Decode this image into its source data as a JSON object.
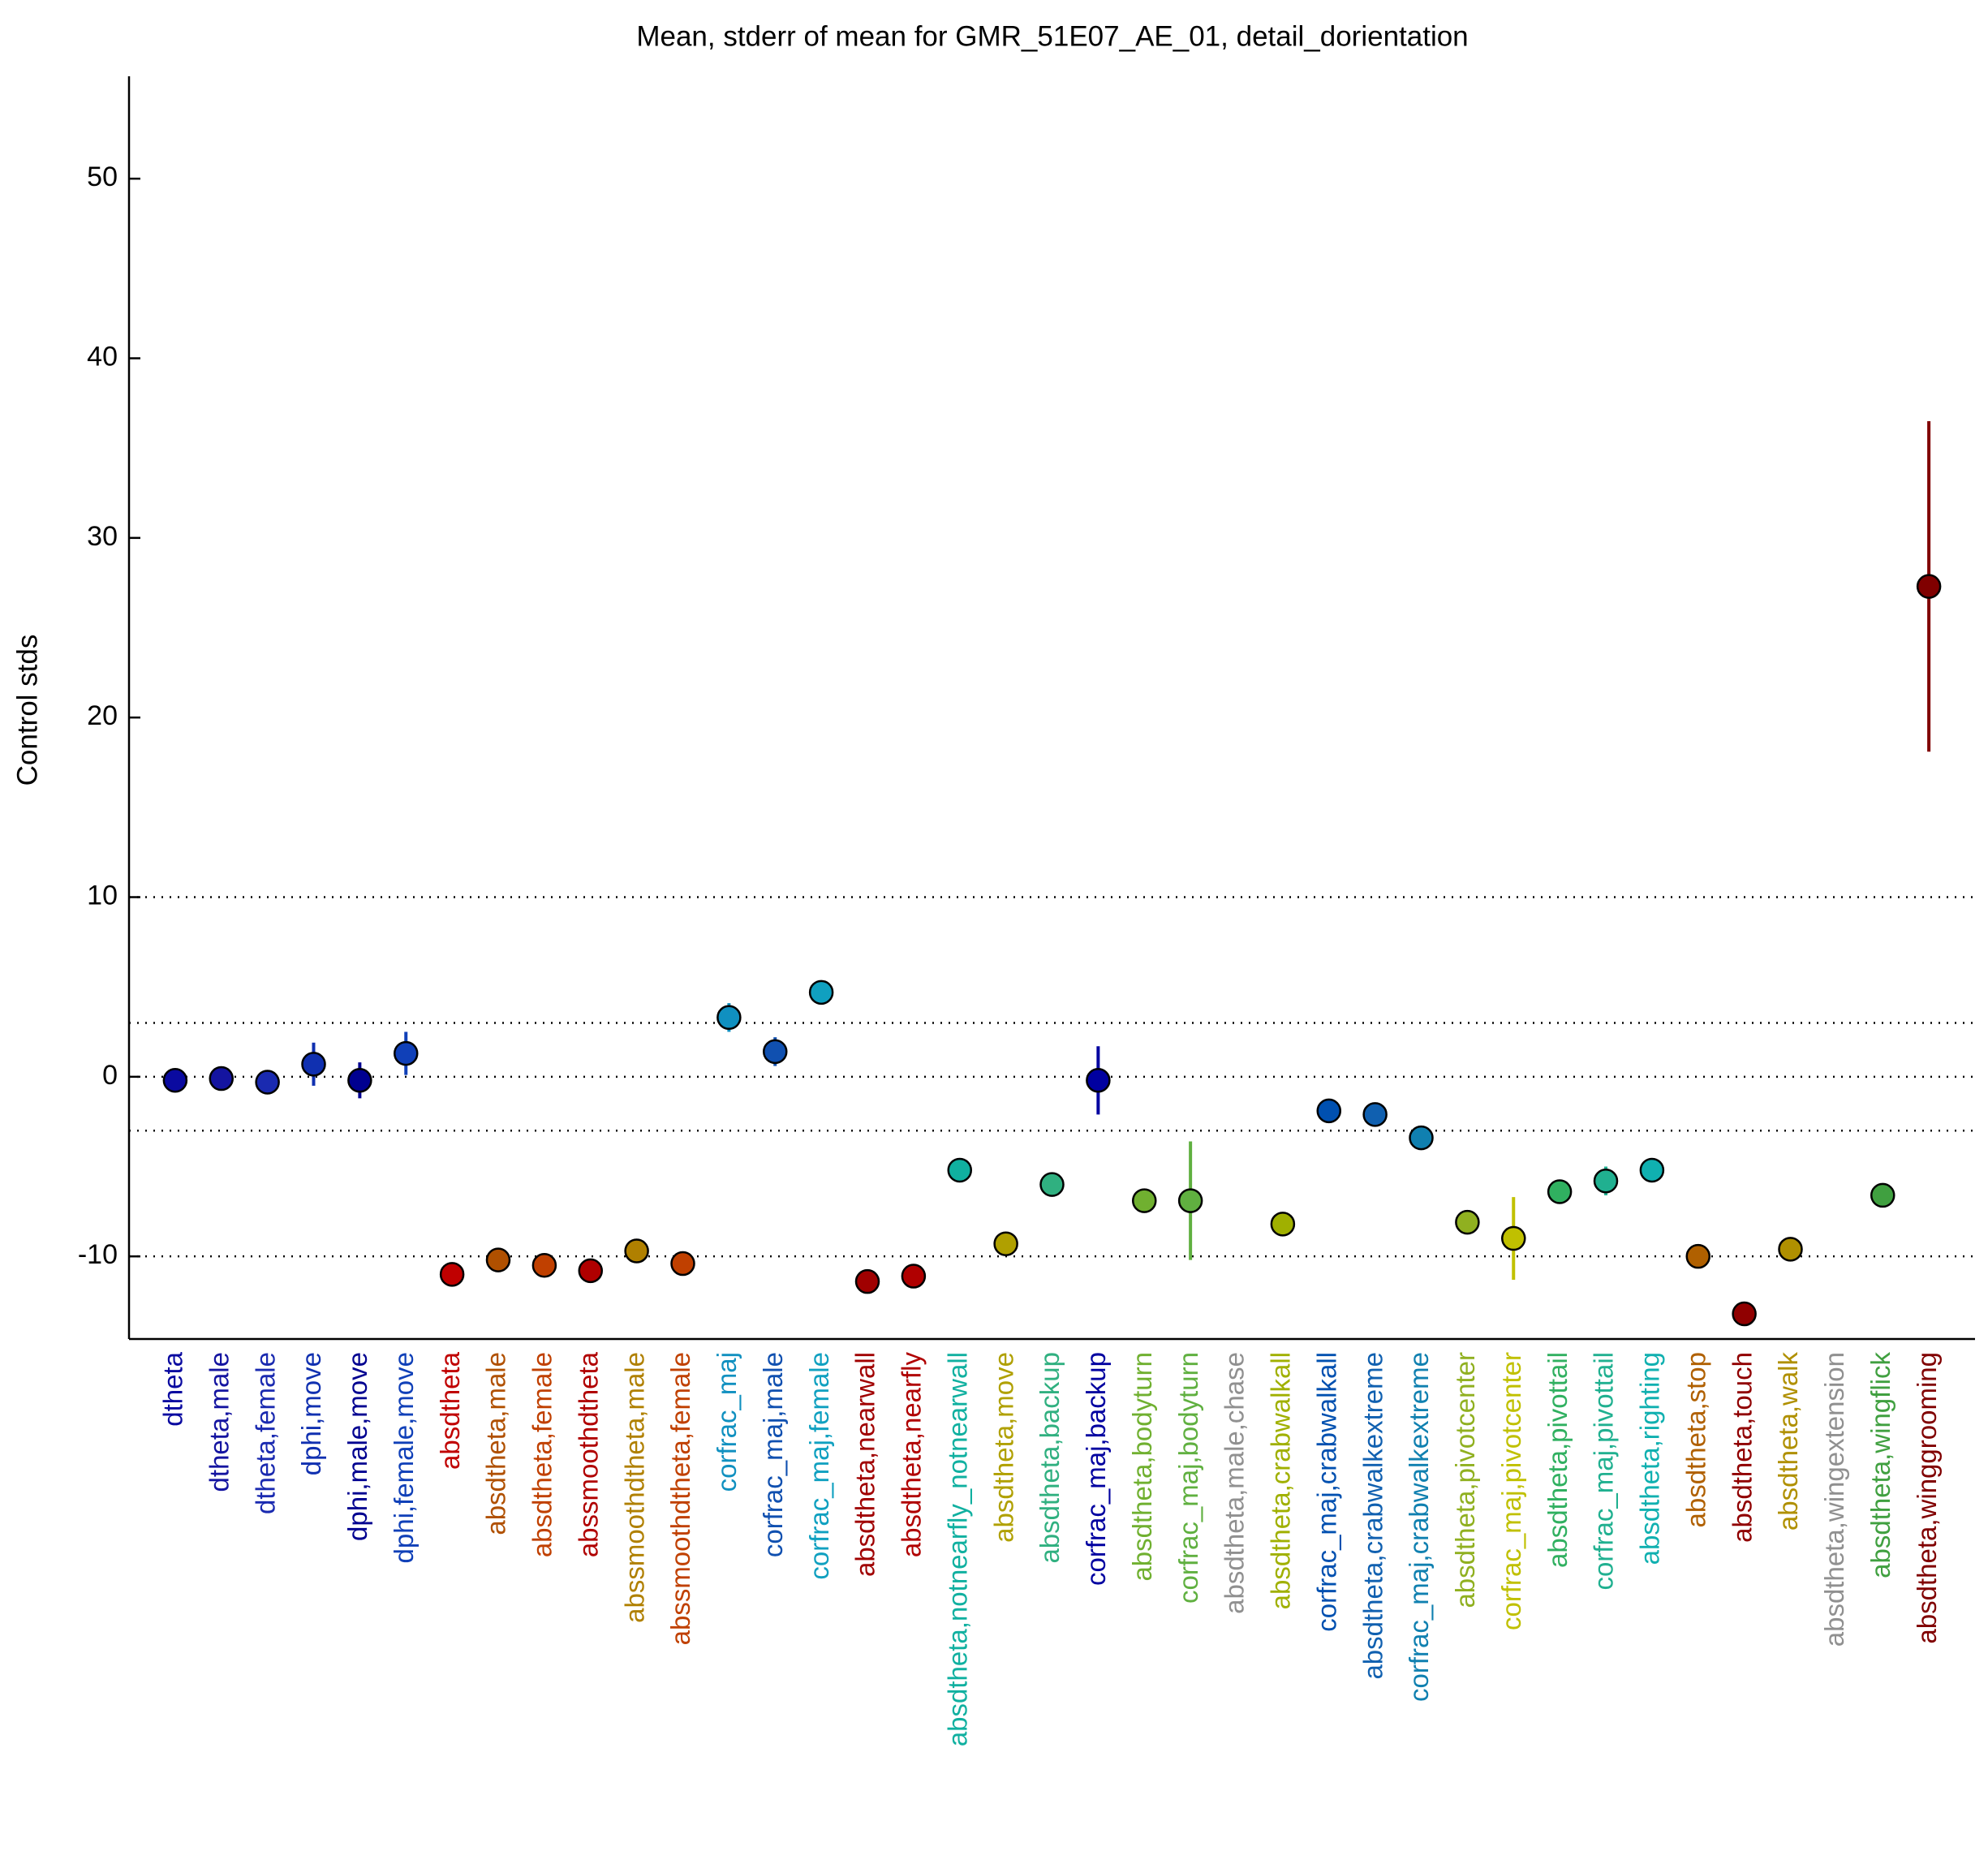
{
  "chart_data": {
    "type": "errorbar",
    "title": "Mean, stderr of mean for GMR_51E07_AE_01, detail_dorientation",
    "y_label": "Control stds",
    "categories": [
      "dtheta",
      "dtheta,male",
      "dtheta,female",
      "dphi,move",
      "dphi,male,move",
      "dphi,female,move",
      "absdtheta",
      "absdtheta,male",
      "absdtheta,female",
      "abssmoothdtheta",
      "abssmoothdtheta,male",
      "abssmoothdtheta,female",
      "corfrac_maj",
      "corfrac_maj,male",
      "corfrac_maj,female",
      "absdtheta,nearwall",
      "absdtheta,nearfly",
      "absdtheta,notnearfly_notnearwall",
      "absdtheta,move",
      "absdtheta,backup",
      "corfrac_maj,backup",
      "absdtheta,bodyturn",
      "corfrac_maj,bodyturn",
      "absdtheta,male,chase",
      "absdtheta,crabwalkall",
      "corfrac_maj,crabwalkall",
      "absdtheta,crabwalkextreme",
      "corfrac_maj,crabwalkextreme",
      "absdtheta,pivotcenter",
      "corfrac_maj,pivotcenter",
      "absdtheta,pivottail",
      "corfrac_maj,pivottail",
      "absdtheta,righting",
      "absdtheta,stop",
      "absdtheta,touch",
      "absdtheta,walk",
      "absdtheta,wingextension",
      "absdtheta,wingflick",
      "absdtheta,winggrooming"
    ],
    "values": [
      -0.2,
      -0.1,
      -0.3,
      0.7,
      -0.2,
      1.3,
      -11.0,
      -10.2,
      -10.5,
      -10.8,
      -9.7,
      -10.4,
      3.3,
      1.4,
      4.7,
      -11.4,
      -11.1,
      -5.2,
      -9.3,
      -6.0,
      -0.2,
      -6.9,
      -6.9,
      null,
      -8.2,
      -1.9,
      -2.1,
      -3.4,
      -8.1,
      -9.0,
      -6.4,
      -5.8,
      -5.2,
      -10.0,
      -13.2,
      -9.6,
      null,
      -6.6,
      27.3
    ],
    "errors": [
      0.4,
      0.4,
      0.4,
      1.2,
      1.0,
      1.2,
      0.3,
      0.3,
      0.3,
      0.3,
      0.3,
      0.3,
      0.8,
      0.8,
      0.5,
      0.3,
      0.3,
      0.4,
      0.4,
      0.4,
      1.9,
      0.4,
      3.3,
      null,
      0.4,
      0.6,
      0.5,
      0.4,
      0.3,
      2.3,
      0.5,
      0.8,
      0.4,
      0.4,
      0.3,
      0.3,
      null,
      0.3,
      9.2
    ],
    "colors": [
      "#0a0aa0",
      "#1414a0",
      "#1a2ab0",
      "#1030b0",
      "#000090",
      "#1040b8",
      "#c00000",
      "#b05000",
      "#c04000",
      "#b00000",
      "#b08000",
      "#c04000",
      "#1090c0",
      "#1050b0",
      "#10a0c0",
      "#a00000",
      "#b00000",
      "#10b0a0",
      "#b0a000",
      "#30b080",
      "#0000a0",
      "#70b030",
      "#60b040",
      "#909090",
      "#a0b000",
      "#0050b0",
      "#1060b0",
      "#1080b0",
      "#90b020",
      "#c0c000",
      "#30b060",
      "#20b090",
      "#10b0b0",
      "#b06000",
      "#900000",
      "#b09000",
      "#909090",
      "#40a040",
      "#800000"
    ],
    "xlim": [
      0,
      40
    ],
    "ylim": [
      -14.6,
      55.7
    ],
    "yticks": [
      -10,
      0,
      10,
      20,
      30,
      40,
      50
    ],
    "hlines": [
      -10,
      -3,
      0,
      3,
      10
    ]
  }
}
